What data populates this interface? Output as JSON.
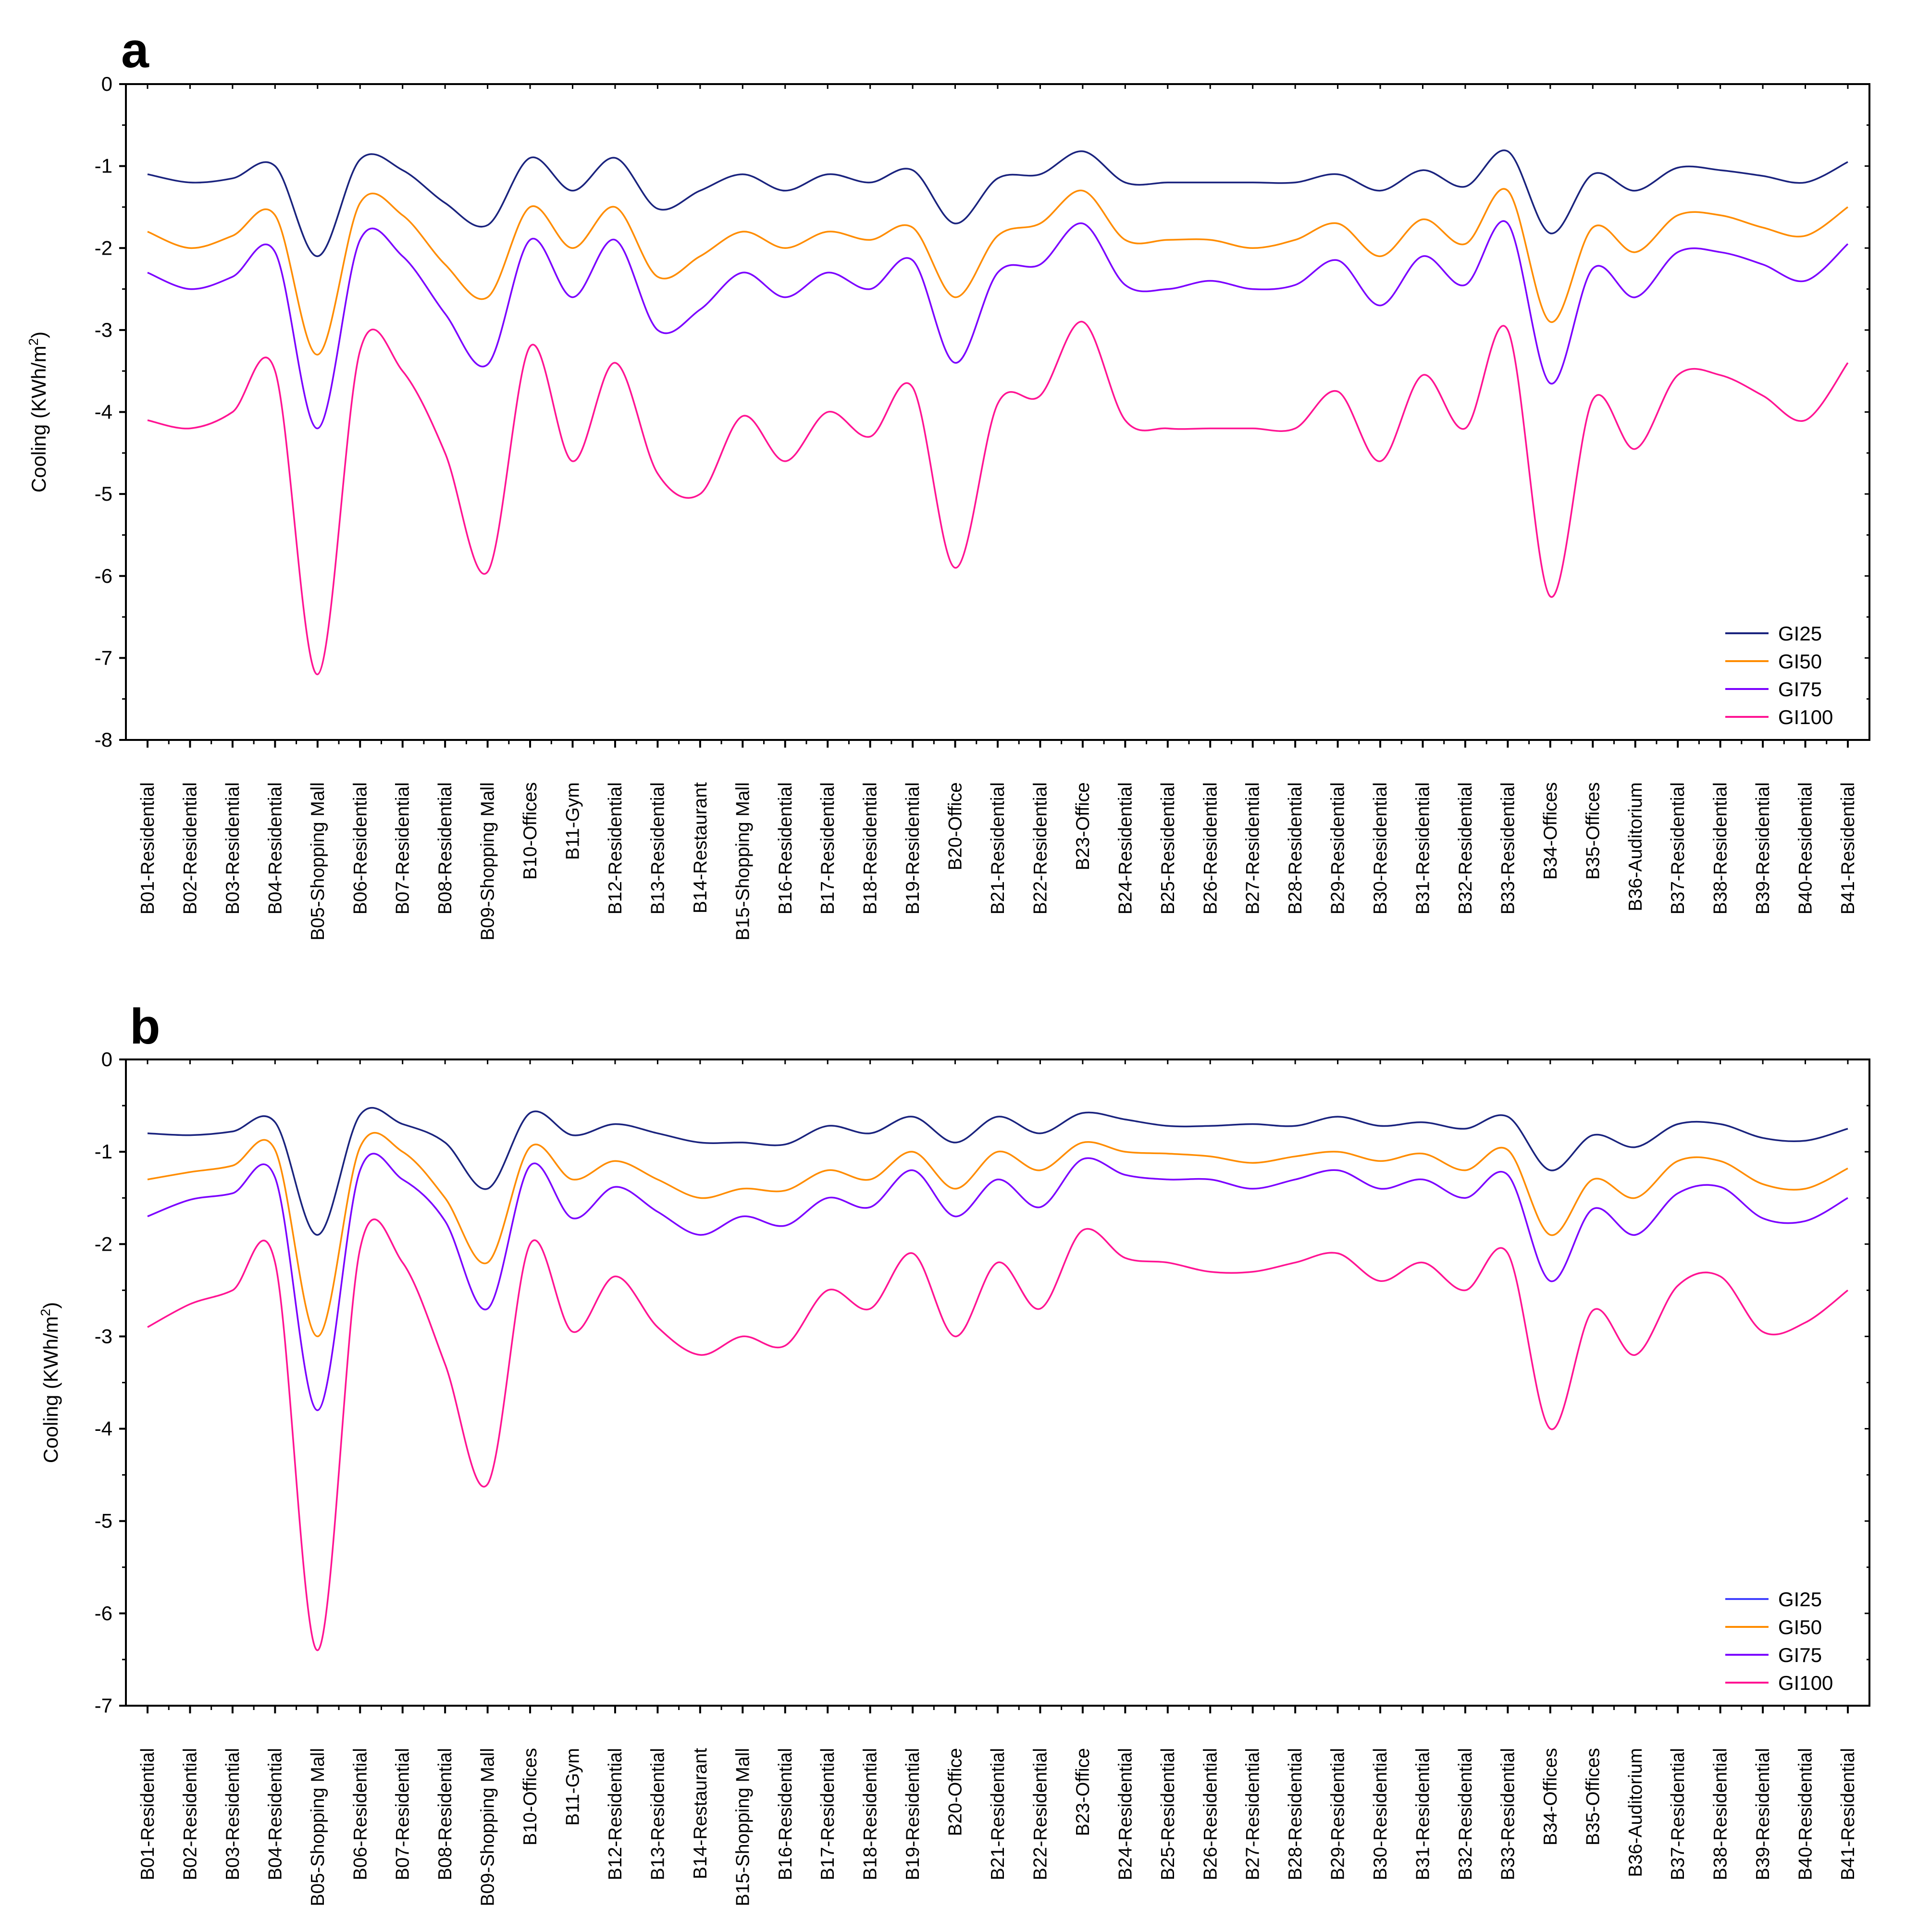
{
  "chart_data": [
    {
      "panel": "a",
      "type": "line",
      "ylabel_main": "Cooling (KWh/m",
      "ylabel_sup": "2",
      "ylabel_close": ")",
      "ylim": [
        -8,
        0
      ],
      "yticks": [
        0,
        -1,
        -2,
        -3,
        -4,
        -5,
        -6,
        -7,
        -8
      ],
      "categories": [
        "B01-Residential",
        "B02-Residential",
        "B03-Residential",
        "B04-Residential",
        "B05-Shopping Mall",
        "B06-Residential",
        "B07-Residential",
        "B08-Residential",
        "B09-Shopping Mall",
        "B10-Offices",
        "B11-Gym",
        "B12-Residential",
        "B13-Residential",
        "B14-Restaurant",
        "B15-Shopping Mall",
        "B16-Residential",
        "B17-Residential",
        "B18-Residential",
        "B19-Residential",
        "B20-Office",
        "B21-Residential",
        "B22-Residential",
        "B23-Office",
        "B24-Residential",
        "B25-Residential",
        "B26-Residential",
        "B27-Residential",
        "B28-Residential",
        "B29-Residential",
        "B30-Residential",
        "B31-Residential",
        "B32-Residential",
        "B33-Residential",
        "B34-Offices",
        "B35-Offices",
        "B36-Auditorium",
        "B37-Residential",
        "B38-Residential",
        "B39-Residential",
        "B40-Residential",
        "B41-Residential"
      ],
      "legend_position": "bottom-right",
      "series": [
        {
          "name": "GI25",
          "color": "#1a237e",
          "values": [
            -1.1,
            -1.2,
            -1.15,
            -1.0,
            -2.1,
            -0.92,
            -1.05,
            -1.45,
            -1.72,
            -0.9,
            -1.3,
            -0.9,
            -1.52,
            -1.3,
            -1.1,
            -1.3,
            -1.1,
            -1.2,
            -1.05,
            -1.7,
            -1.15,
            -1.1,
            -0.82,
            -1.2,
            -1.2,
            -1.2,
            -1.2,
            -1.2,
            -1.1,
            -1.3,
            -1.05,
            -1.25,
            -0.82,
            -1.82,
            -1.1,
            -1.3,
            -1.02,
            -1.05,
            -1.12,
            -1.2,
            -0.95
          ]
        },
        {
          "name": "GI50",
          "color": "#ff8c00",
          "values": [
            -1.8,
            -2.0,
            -1.85,
            -1.6,
            -3.3,
            -1.45,
            -1.6,
            -2.2,
            -2.6,
            -1.5,
            -2.0,
            -1.5,
            -2.35,
            -2.1,
            -1.8,
            -2.0,
            -1.8,
            -1.9,
            -1.75,
            -2.6,
            -1.85,
            -1.7,
            -1.3,
            -1.9,
            -1.9,
            -1.9,
            -2.0,
            -1.9,
            -1.7,
            -2.1,
            -1.65,
            -1.95,
            -1.3,
            -2.9,
            -1.75,
            -2.05,
            -1.6,
            -1.6,
            -1.75,
            -1.85,
            -1.5
          ]
        },
        {
          "name": "GI75",
          "color": "#7b00ff",
          "values": [
            -2.3,
            -2.5,
            -2.35,
            -2.05,
            -4.2,
            -1.9,
            -2.1,
            -2.8,
            -3.42,
            -1.9,
            -2.6,
            -1.9,
            -3.0,
            -2.75,
            -2.3,
            -2.6,
            -2.3,
            -2.5,
            -2.15,
            -3.4,
            -2.3,
            -2.2,
            -1.7,
            -2.45,
            -2.5,
            -2.4,
            -2.5,
            -2.45,
            -2.15,
            -2.7,
            -2.1,
            -2.45,
            -1.7,
            -3.65,
            -2.25,
            -2.6,
            -2.05,
            -2.05,
            -2.2,
            -2.4,
            -1.95
          ]
        },
        {
          "name": "GI100",
          "color": "#ff1493",
          "values": [
            -4.1,
            -4.2,
            -4.0,
            -3.5,
            -7.2,
            -3.25,
            -3.5,
            -4.5,
            -5.95,
            -3.2,
            -4.6,
            -3.4,
            -4.75,
            -5.0,
            -4.05,
            -4.6,
            -4.0,
            -4.3,
            -3.7,
            -5.9,
            -3.9,
            -3.8,
            -2.9,
            -4.1,
            -4.2,
            -4.2,
            -4.2,
            -4.2,
            -3.75,
            -4.6,
            -3.55,
            -4.2,
            -3.0,
            -6.25,
            -3.85,
            -4.45,
            -3.55,
            -3.55,
            -3.8,
            -4.1,
            -3.4
          ]
        }
      ]
    },
    {
      "panel": "b",
      "type": "line",
      "ylabel_main": "Cooling (KWh/m",
      "ylabel_sup": "2",
      "ylabel_close": ")",
      "ylim": [
        -7,
        0
      ],
      "yticks": [
        0,
        -1,
        -2,
        -3,
        -4,
        -5,
        -6,
        -7
      ],
      "categories": [
        "B01-Residential",
        "B02-Residential",
        "B03-Residential",
        "B04-Residential",
        "B05-Shopping Mall",
        "B06-Residential",
        "B07-Residential",
        "B08-Residential",
        "B09-Shopping Mall",
        "B10-Offices",
        "B11-Gym",
        "B12-Residential",
        "B13-Residential",
        "B14-Restaurant",
        "B15-Shopping Mall",
        "B16-Residential",
        "B17-Residential",
        "B18-Residential",
        "B19-Residential",
        "B20-Office",
        "B21-Residential",
        "B22-Residential",
        "B23-Office",
        "B24-Residential",
        "B25-Residential",
        "B26-Residential",
        "B27-Residential",
        "B28-Residential",
        "B29-Residential",
        "B30-Residential",
        "B31-Residential",
        "B32-Residential",
        "B33-Residential",
        "B34-Offices",
        "B35-Offices",
        "B36-Auditorium",
        "B37-Residential",
        "B38-Residential",
        "B39-Residential",
        "B40-Residential",
        "B41-Residential"
      ],
      "legend_position": "bottom-right",
      "series": [
        {
          "name": "GI25",
          "color": "#1a237e",
          "legend_color": "#4040ff",
          "values": [
            -0.8,
            -0.82,
            -0.78,
            -0.68,
            -1.9,
            -0.6,
            -0.7,
            -0.9,
            -1.4,
            -0.58,
            -0.82,
            -0.7,
            -0.8,
            -0.9,
            -0.9,
            -0.92,
            -0.72,
            -0.8,
            -0.62,
            -0.9,
            -0.62,
            -0.8,
            -0.58,
            -0.65,
            -0.72,
            -0.72,
            -0.7,
            -0.72,
            -0.62,
            -0.72,
            -0.68,
            -0.75,
            -0.62,
            -1.2,
            -0.82,
            -0.95,
            -0.7,
            -0.7,
            -0.85,
            -0.88,
            -0.75
          ]
        },
        {
          "name": "GI50",
          "color": "#ff8c00",
          "values": [
            -1.3,
            -1.22,
            -1.15,
            -0.98,
            -3.0,
            -0.95,
            -1.0,
            -1.5,
            -2.2,
            -0.95,
            -1.3,
            -1.1,
            -1.3,
            -1.5,
            -1.4,
            -1.42,
            -1.2,
            -1.3,
            -1.0,
            -1.4,
            -1.0,
            -1.2,
            -0.9,
            -1.0,
            -1.02,
            -1.05,
            -1.12,
            -1.05,
            -1.0,
            -1.1,
            -1.02,
            -1.2,
            -0.98,
            -1.9,
            -1.3,
            -1.5,
            -1.1,
            -1.1,
            -1.35,
            -1.4,
            -1.18
          ]
        },
        {
          "name": "GI75",
          "color": "#7b00ff",
          "values": [
            -1.7,
            -1.52,
            -1.45,
            -1.28,
            -3.8,
            -1.2,
            -1.3,
            -1.75,
            -2.7,
            -1.15,
            -1.72,
            -1.38,
            -1.65,
            -1.9,
            -1.7,
            -1.8,
            -1.5,
            -1.6,
            -1.2,
            -1.7,
            -1.3,
            -1.6,
            -1.08,
            -1.25,
            -1.3,
            -1.3,
            -1.4,
            -1.3,
            -1.2,
            -1.4,
            -1.3,
            -1.5,
            -1.25,
            -2.4,
            -1.62,
            -1.9,
            -1.45,
            -1.38,
            -1.72,
            -1.75,
            -1.5
          ]
        },
        {
          "name": "GI100",
          "color": "#ff1493",
          "values": [
            -2.9,
            -2.65,
            -2.5,
            -2.2,
            -6.4,
            -2.05,
            -2.2,
            -3.3,
            -4.6,
            -2.0,
            -2.95,
            -2.35,
            -2.9,
            -3.2,
            -3.0,
            -3.1,
            -2.5,
            -2.7,
            -2.1,
            -3.0,
            -2.2,
            -2.7,
            -1.85,
            -2.15,
            -2.2,
            -2.3,
            -2.3,
            -2.2,
            -2.1,
            -2.4,
            -2.2,
            -2.5,
            -2.1,
            -4.0,
            -2.72,
            -3.2,
            -2.45,
            -2.35,
            -2.95,
            -2.85,
            -2.5
          ]
        }
      ]
    }
  ]
}
